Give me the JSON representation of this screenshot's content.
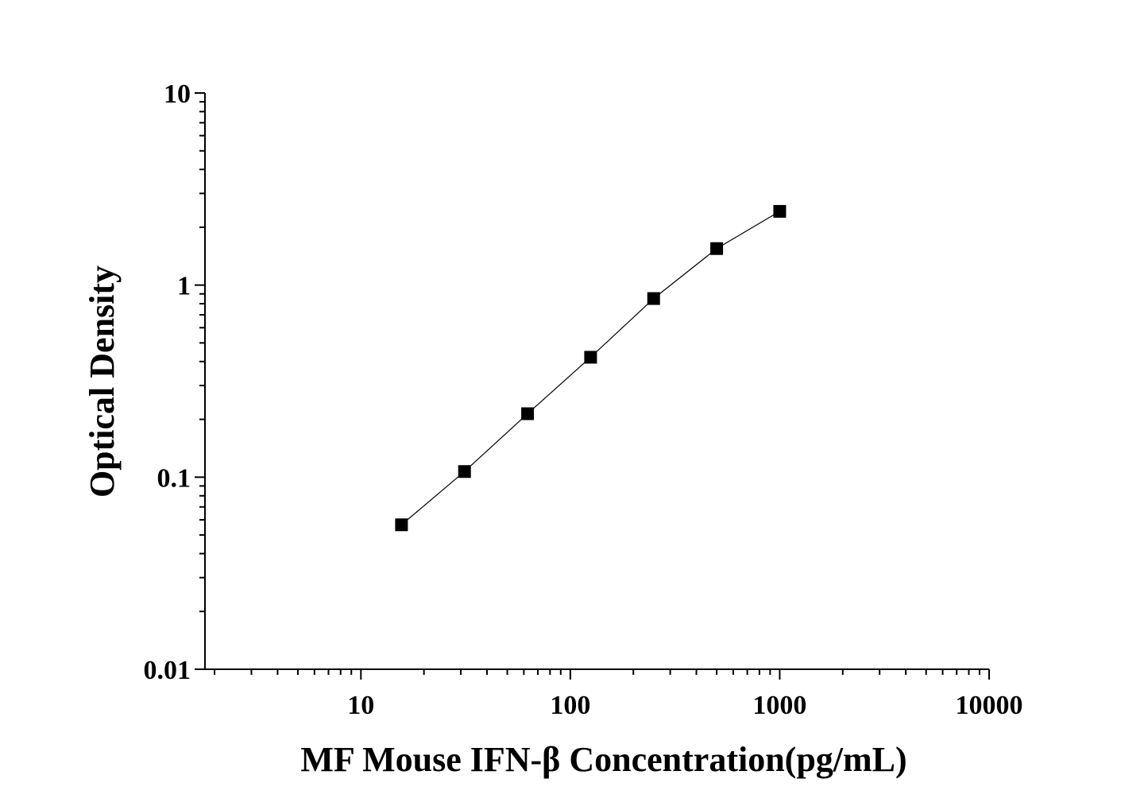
{
  "chart_data": {
    "type": "line",
    "x_label": "MF Mouse IFN-β Concentration(pg/mL)",
    "y_label": "Optical Density",
    "x": [
      15.625,
      31.25,
      62.5,
      125,
      250,
      500,
      1000
    ],
    "series": [
      {
        "color": "#000000",
        "values": [
          0.0565,
          0.107,
          0.214,
          0.421,
          0.851,
          1.549,
          2.42
        ]
      }
    ],
    "xlim": [
      1.8,
      10000
    ],
    "ylim": [
      0.01,
      10
    ],
    "xticks": [
      10,
      100,
      1000,
      10000
    ],
    "yticks": [
      0.01,
      0.1,
      1,
      10
    ],
    "xscale": "log",
    "yscale": "log"
  }
}
